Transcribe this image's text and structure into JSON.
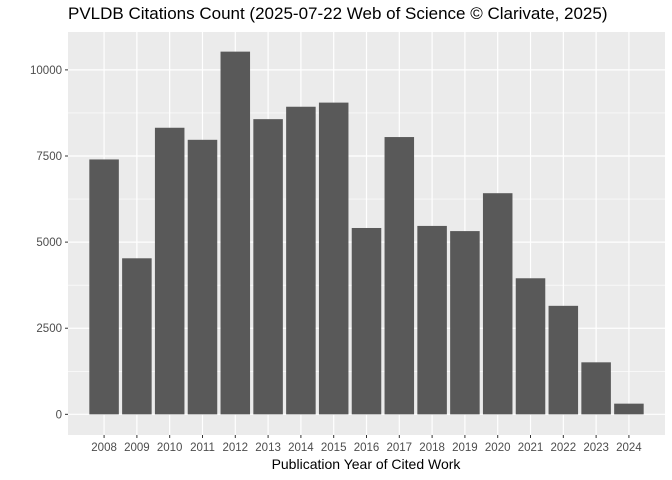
{
  "chart_data": {
    "type": "bar",
    "title": "PVLDB Citations Count (2025-07-22 Web of Science © Clarivate, 2025)",
    "xlabel": "Publication Year of Cited Work",
    "ylabel": "",
    "categories": [
      "2008",
      "2009",
      "2010",
      "2011",
      "2012",
      "2013",
      "2014",
      "2015",
      "2016",
      "2017",
      "2018",
      "2019",
      "2020",
      "2021",
      "2022",
      "2023",
      "2024"
    ],
    "values": [
      7400,
      4530,
      8320,
      7970,
      10530,
      8570,
      8930,
      9050,
      5410,
      8050,
      5470,
      5320,
      6420,
      3950,
      3150,
      1510,
      310
    ],
    "ylim": [
      -600,
      11100
    ],
    "yticks": [
      0,
      2500,
      5000,
      7500,
      10000
    ],
    "ytick_labels": [
      "0",
      "2500",
      "5000",
      "7500",
      "10000"
    ],
    "grid": true,
    "colors": {
      "bar": "#595959",
      "panel": "#ebebeb",
      "grid_major": "#ffffff"
    }
  }
}
